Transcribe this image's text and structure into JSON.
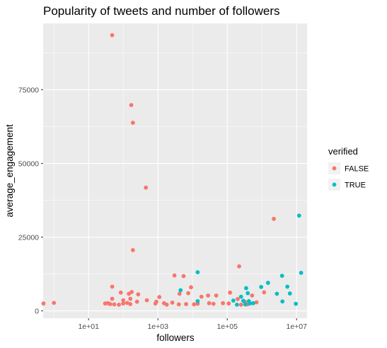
{
  "chart_data": {
    "type": "scatter",
    "title": "Popularity of tweets and number of followers",
    "xlabel": "followers",
    "ylabel": "average_engagement",
    "x_scale": "log10",
    "xlim": [
      0.49,
      20000000
    ],
    "ylim": [
      -2500,
      97500
    ],
    "x_ticks": [
      {
        "value": 10,
        "label": "1e+01"
      },
      {
        "value": 1000,
        "label": "1e+03"
      },
      {
        "value": 100000,
        "label": "1e+05"
      },
      {
        "value": 10000000,
        "label": "1e+07"
      }
    ],
    "y_ticks": [
      {
        "value": 0,
        "label": "0"
      },
      {
        "value": 25000,
        "label": "25000"
      },
      {
        "value": 50000,
        "label": "50000"
      },
      {
        "value": 75000,
        "label": "75000"
      }
    ],
    "grid": true,
    "legend": {
      "title": "verified",
      "position": "right",
      "entries": [
        {
          "label": "FALSE",
          "color": "#F8766D"
        },
        {
          "label": "TRUE",
          "color": "#00BFC4"
        }
      ]
    },
    "series": [
      {
        "name": "FALSE",
        "color": "#F8766D",
        "points": [
          [
            0.5,
            2500
          ],
          [
            1.0,
            2700
          ],
          [
            48,
            93500
          ],
          [
            170,
            69800
          ],
          [
            190,
            63800
          ],
          [
            450,
            41800
          ],
          [
            190,
            20600
          ],
          [
            2200000,
            31200
          ],
          [
            220000,
            15100
          ],
          [
            3000,
            12000
          ],
          [
            5500,
            11800
          ],
          [
            9000,
            8000
          ],
          [
            48,
            8200
          ],
          [
            85,
            6200
          ],
          [
            145,
            5800
          ],
          [
            175,
            6400
          ],
          [
            270,
            5600
          ],
          [
            1100,
            4700
          ],
          [
            4200,
            5800
          ],
          [
            7500,
            6000
          ],
          [
            18000,
            4800
          ],
          [
            28000,
            5200
          ],
          [
            48000,
            5200
          ],
          [
            120000,
            6200
          ],
          [
            520000,
            5200
          ],
          [
            1150000,
            6300
          ],
          [
            48,
            4100
          ],
          [
            100,
            3600
          ],
          [
            160,
            4100
          ],
          [
            250,
            3100
          ],
          [
            480,
            3600
          ],
          [
            900,
            3100
          ],
          [
            1500,
            2600
          ],
          [
            2600,
            2800
          ],
          [
            6500,
            2300
          ],
          [
            14000,
            2400
          ],
          [
            30000,
            2600
          ],
          [
            75000,
            2600
          ],
          [
            200000,
            4000
          ],
          [
            320000,
            3100
          ],
          [
            700000,
            2900
          ],
          [
            30,
            2500
          ],
          [
            36,
            2600
          ],
          [
            42,
            2300
          ],
          [
            55,
            2200
          ],
          [
            75,
            2100
          ],
          [
            100,
            2500
          ],
          [
            130,
            2700
          ],
          [
            160,
            2300
          ],
          [
            850,
            2500
          ],
          [
            1800,
            2100
          ],
          [
            4000,
            2200
          ],
          [
            11000,
            2200
          ],
          [
            40000,
            2400
          ],
          [
            110000,
            2500
          ],
          [
            250000,
            2100
          ],
          [
            380000,
            2200
          ]
        ]
      },
      {
        "name": "TRUE",
        "color": "#00BFC4",
        "points": [
          [
            11800000,
            32300
          ],
          [
            13500000,
            12900
          ],
          [
            14000,
            13100
          ],
          [
            3800000,
            11900
          ],
          [
            1500000,
            9500
          ],
          [
            950000,
            8100
          ],
          [
            5400000,
            8200
          ],
          [
            350000,
            7700
          ],
          [
            4500,
            7000
          ],
          [
            390000,
            6000
          ],
          [
            6400000,
            5900
          ],
          [
            2700000,
            5800
          ],
          [
            250000,
            4800
          ],
          [
            150000,
            3500
          ],
          [
            290000,
            3400
          ],
          [
            420000,
            3300
          ],
          [
            3900000,
            3200
          ],
          [
            14000,
            3300
          ],
          [
            450000,
            2500
          ],
          [
            9500000,
            2400
          ],
          [
            330000,
            2200
          ],
          [
            190000,
            2100
          ],
          [
            560000,
            2600
          ]
        ]
      }
    ]
  }
}
